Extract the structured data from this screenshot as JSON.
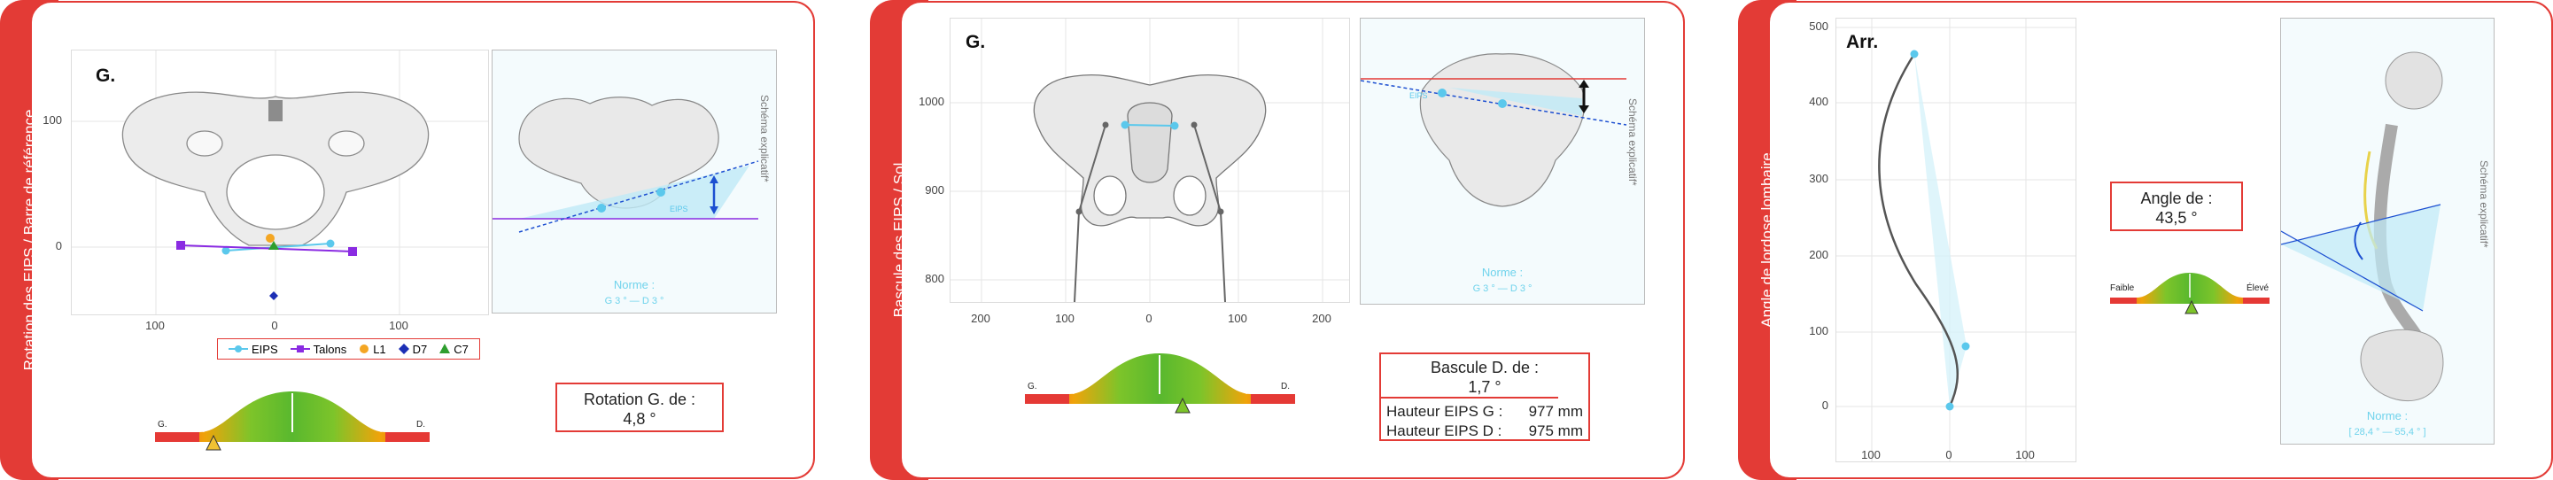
{
  "panel1": {
    "side_label": "Rotation des EIPS / Barre de référence",
    "corner_label": "G.",
    "y_ticks": [
      "100",
      "0"
    ],
    "x_ticks": [
      "100",
      "0",
      "100"
    ],
    "legend": [
      {
        "label": "EIPS",
        "color": "#5bc8ec",
        "marker": "circle-line"
      },
      {
        "label": "Talons",
        "color": "#8a2be2",
        "marker": "square-line"
      },
      {
        "label": "L1",
        "color": "#f4a623",
        "marker": "circle"
      },
      {
        "label": "D7",
        "color": "#1c2fb5",
        "marker": "diamond"
      },
      {
        "label": "C7",
        "color": "#2e9e2e",
        "marker": "triangle"
      }
    ],
    "schema_label": "Schéma explicatif*",
    "schema_eips": "EIPS",
    "norme_title": "Norme :",
    "norme_range": "G 3 ° — D 3 °",
    "value_title": "Rotation G. de :",
    "value": "4,8 °",
    "gauge_left": "G.",
    "gauge_right": "D."
  },
  "panel2": {
    "side_label": "Bascule des EIPS / Sol",
    "corner_label": "G.",
    "y_ticks": [
      "1000",
      "900",
      "800"
    ],
    "x_ticks": [
      "200",
      "100",
      "0",
      "100",
      "200"
    ],
    "schema_label": "Schéma explicatif*",
    "schema_eips": "EIPS",
    "norme_title": "Norme :",
    "norme_range": "G 3 ° — D 3 °",
    "value_title": "Bascule D. de :",
    "value": "1,7 °",
    "rows": [
      {
        "label": "Hauteur EIPS G :",
        "value": "977 mm"
      },
      {
        "label": "Hauteur EIPS D :",
        "value": "975 mm"
      }
    ],
    "gauge_left": "G.",
    "gauge_right": "D."
  },
  "panel3": {
    "side_label": "Angle de lordose lombaire",
    "corner_label": "Arr.",
    "y_ticks": [
      "500",
      "400",
      "300",
      "200",
      "100",
      "0"
    ],
    "x_ticks": [
      "100",
      "0",
      "100"
    ],
    "schema_label": "Schéma explicatif*",
    "norme_title": "Norme :",
    "norme_range": "[ 28,4 ° — 55,4 ° ]",
    "value_title": "Angle de :",
    "value": "43,5 °",
    "gauge_left": "Faible",
    "gauge_right": "Élevé"
  },
  "colors": {
    "accent": "#e33b36",
    "cyan": "#5bc8ec",
    "norme": "#6fd3ec"
  }
}
